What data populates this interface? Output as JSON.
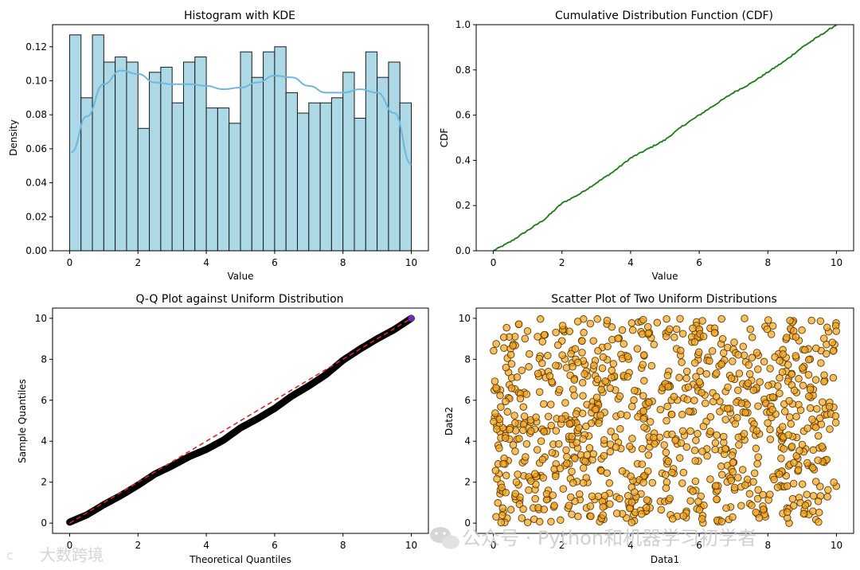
{
  "watermark": {
    "wechat": "公众号 · Python和机器学习初学者",
    "corner": "大数跨境",
    "corner_glyph": "c"
  },
  "chart_data": [
    {
      "type": "bar",
      "title": "Histogram with KDE",
      "xlabel": "Value",
      "ylabel": "Density",
      "xlim": [
        -0.5,
        10.5
      ],
      "ylim": [
        0,
        0.133
      ],
      "xticks": [
        0,
        2,
        4,
        6,
        8,
        10
      ],
      "yticks": [
        0.0,
        0.02,
        0.04,
        0.06,
        0.08,
        0.1,
        0.12
      ],
      "ytick_labels": [
        "0.00",
        "0.02",
        "0.04",
        "0.06",
        "0.08",
        "0.10",
        "0.12"
      ],
      "bin_start": 0.0,
      "bin_width": 0.3333,
      "values": [
        0.127,
        0.09,
        0.127,
        0.111,
        0.114,
        0.111,
        0.072,
        0.105,
        0.108,
        0.087,
        0.111,
        0.114,
        0.084,
        0.084,
        0.075,
        0.117,
        0.102,
        0.117,
        0.12,
        0.093,
        0.081,
        0.087,
        0.087,
        0.09,
        0.105,
        0.078,
        0.117,
        0.102,
        0.111,
        0.087
      ],
      "bar_color": "#add8e6",
      "kde_color": "#6cb8df",
      "kde_x": [
        0.05,
        0.5,
        1.0,
        1.5,
        2.0,
        2.5,
        3.0,
        3.5,
        4.0,
        4.5,
        5.0,
        5.5,
        6.0,
        6.5,
        7.0,
        7.5,
        8.0,
        8.5,
        9.0,
        9.5,
        10.0
      ],
      "kde_y": [
        0.058,
        0.079,
        0.098,
        0.106,
        0.104,
        0.099,
        0.098,
        0.098,
        0.097,
        0.095,
        0.096,
        0.099,
        0.103,
        0.102,
        0.097,
        0.093,
        0.093,
        0.095,
        0.093,
        0.081,
        0.051
      ]
    },
    {
      "type": "line",
      "title": "Cumulative Distribution Function (CDF)",
      "xlabel": "Value",
      "ylabel": "CDF",
      "xlim": [
        -0.5,
        10.5
      ],
      "ylim": [
        0,
        1.0
      ],
      "xticks": [
        0,
        2,
        4,
        6,
        8,
        10
      ],
      "yticks": [
        0.0,
        0.2,
        0.4,
        0.6,
        0.8,
        1.0
      ],
      "ytick_labels": [
        "0.0",
        "0.2",
        "0.4",
        "0.6",
        "0.8",
        "1.0"
      ],
      "x": [
        0,
        0.5,
        1,
        1.5,
        2,
        2.5,
        3,
        3.5,
        4,
        4.5,
        5,
        5.5,
        6,
        6.5,
        7,
        7.5,
        8,
        8.5,
        9,
        9.5,
        10
      ],
      "y": [
        0,
        0.04,
        0.09,
        0.14,
        0.21,
        0.25,
        0.3,
        0.35,
        0.41,
        0.45,
        0.49,
        0.55,
        0.6,
        0.65,
        0.7,
        0.74,
        0.79,
        0.84,
        0.9,
        0.95,
        1.0
      ],
      "color": "#1a7a1a"
    },
    {
      "type": "scatter",
      "title": "Q-Q Plot against Uniform Distribution",
      "xlabel": "Theoretical Quantiles",
      "ylabel": "Sample Quantiles",
      "xlim": [
        -0.5,
        10.5
      ],
      "ylim": [
        -0.5,
        10.5
      ],
      "xticks": [
        0,
        2,
        4,
        6,
        8,
        10
      ],
      "yticks": [
        0,
        2,
        4,
        6,
        8,
        10
      ],
      "ytick_labels": [
        "0",
        "2",
        "4",
        "6",
        "8",
        "10"
      ],
      "x": [
        0,
        0.5,
        1,
        1.5,
        2,
        2.5,
        3,
        3.5,
        4,
        4.5,
        5,
        5.5,
        6,
        6.5,
        7,
        7.5,
        8,
        8.5,
        9,
        9.5,
        10
      ],
      "y": [
        0.05,
        0.4,
        0.9,
        1.35,
        1.85,
        2.4,
        2.8,
        3.25,
        3.6,
        4.05,
        4.65,
        5.1,
        5.6,
        6.2,
        6.7,
        7.25,
        7.95,
        8.5,
        9.0,
        9.45,
        10.0
      ],
      "ref_line": {
        "x": [
          0,
          10
        ],
        "y": [
          0,
          10
        ],
        "color": "#d62728",
        "style": "dashed"
      },
      "marker_color": "#000000"
    },
    {
      "type": "scatter",
      "title": "Scatter Plot of Two Uniform Distributions",
      "xlabel": "Data1",
      "ylabel": "Data2",
      "xlim": [
        -0.5,
        10.5
      ],
      "ylim": [
        -0.5,
        10.5
      ],
      "xticks": [
        0,
        2,
        4,
        6,
        8,
        10
      ],
      "yticks": [
        0,
        2,
        4,
        6,
        8,
        10
      ],
      "ytick_labels": [
        "0",
        "2",
        "4",
        "6",
        "8",
        "10"
      ],
      "n_points": 1000,
      "distribution": "uniform on [0,10] x [0,10]",
      "marker_color": "#f5a623",
      "edge_color": "#5a3a00"
    }
  ]
}
